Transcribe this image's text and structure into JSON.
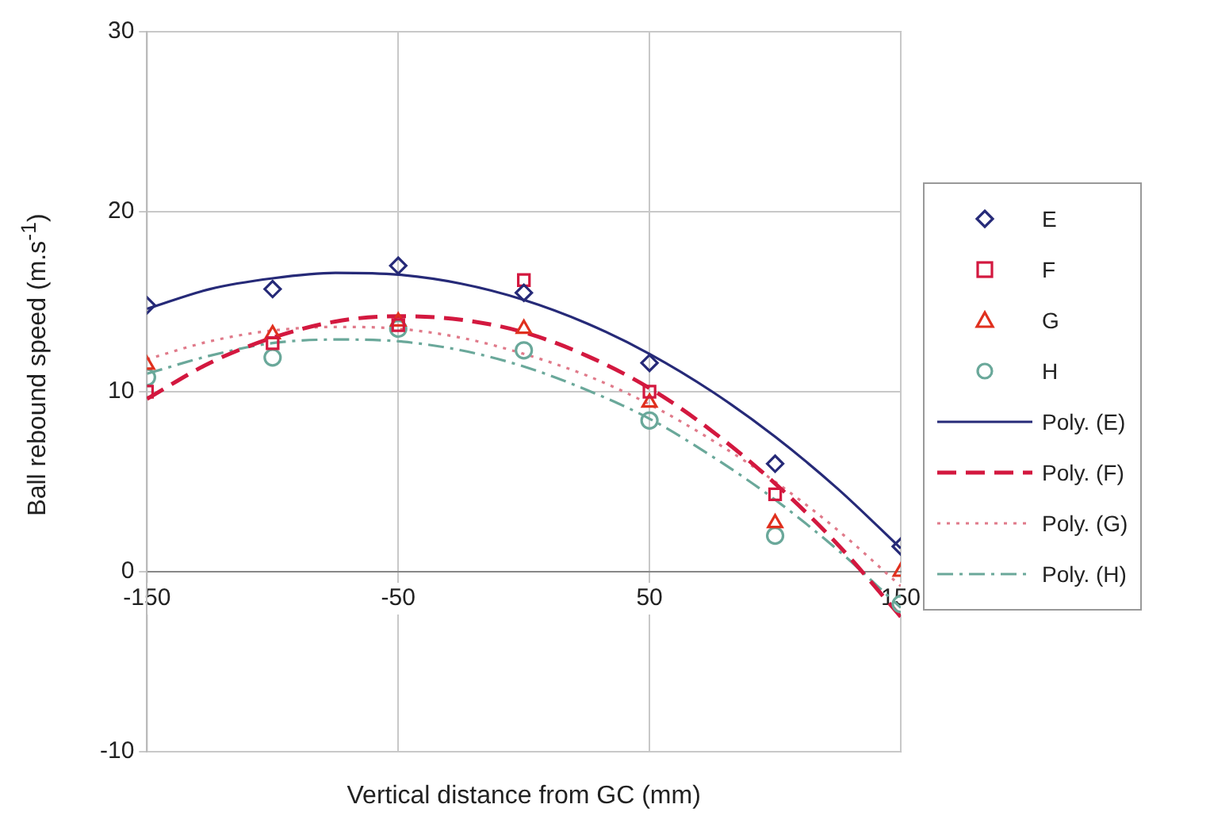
{
  "chart_data": {
    "type": "scatter",
    "xlabel": "Vertical distance from GC (mm)",
    "ylabel": "Ball rebound speed (m.s$^{-1}$)",
    "xlim": [
      -150,
      150
    ],
    "xticks": [
      -150,
      -50,
      50,
      150
    ],
    "ylim": [
      -10,
      30
    ],
    "yticks": [
      -10,
      0,
      10,
      20,
      30
    ],
    "grid": true,
    "legend": "right",
    "series": [
      {
        "name": "E",
        "marker": "diamond",
        "color": "#262a78",
        "x": [
          -150,
          -100,
          -50,
          0,
          50,
          100,
          150
        ],
        "values": [
          14.8,
          15.7,
          17.0,
          15.5,
          11.6,
          6.0,
          1.4
        ]
      },
      {
        "name": "F",
        "marker": "square",
        "color": "#d3183f",
        "x": [
          -150,
          -100,
          -50,
          0,
          50,
          100
        ],
        "values": [
          10.0,
          12.7,
          13.7,
          16.2,
          10.0,
          4.3
        ]
      },
      {
        "name": "G",
        "marker": "triangle",
        "color": "#e0301e",
        "x": [
          -150,
          -100,
          -50,
          0,
          50,
          100,
          150
        ],
        "values": [
          11.5,
          13.2,
          13.9,
          13.5,
          9.4,
          2.7,
          0.0
        ]
      },
      {
        "name": "H",
        "marker": "circle",
        "color": "#6aa89a",
        "x": [
          -150,
          -100,
          -50,
          0,
          50,
          100,
          150
        ],
        "values": [
          10.8,
          11.9,
          13.5,
          12.3,
          8.4,
          2.0,
          -1.8
        ]
      },
      {
        "name": "Poly. (E)",
        "type": "line",
        "line_style": "solid",
        "color": "#262a78",
        "x": [
          -150,
          -125,
          -100,
          -75,
          -50,
          -25,
          0,
          25,
          50,
          75,
          100,
          125,
          150
        ],
        "values": [
          14.6,
          15.7,
          16.3,
          16.6,
          16.5,
          16.0,
          15.1,
          13.8,
          12.1,
          10.0,
          7.5,
          4.6,
          1.3
        ]
      },
      {
        "name": "Poly. (F)",
        "type": "line",
        "line_style": "dashed",
        "color": "#d3183f",
        "x": [
          -150,
          -125,
          -100,
          -75,
          -50,
          -25,
          0,
          25,
          50,
          75,
          100,
          125,
          150
        ],
        "values": [
          9.6,
          11.6,
          13.0,
          13.9,
          14.2,
          14.0,
          13.3,
          12.0,
          10.2,
          7.8,
          4.9,
          1.5,
          -2.5
        ]
      },
      {
        "name": "Poly. (G)",
        "type": "line",
        "line_style": "dotted",
        "color": "#e07a8a",
        "x": [
          -150,
          -125,
          -100,
          -75,
          -50,
          -25,
          0,
          25,
          50,
          75,
          100,
          125,
          150
        ],
        "values": [
          11.8,
          12.8,
          13.4,
          13.6,
          13.5,
          13.0,
          12.1,
          10.9,
          9.3,
          7.3,
          5.0,
          2.3,
          -0.8
        ]
      },
      {
        "name": "Poly. (H)",
        "type": "line",
        "line_style": "dashdot",
        "color": "#6aa89a",
        "x": [
          -150,
          -125,
          -100,
          -75,
          -50,
          -25,
          0,
          25,
          50,
          75,
          100,
          125,
          150
        ],
        "values": [
          11.0,
          12.0,
          12.7,
          12.9,
          12.8,
          12.3,
          11.4,
          10.1,
          8.5,
          6.4,
          4.0,
          1.2,
          -2.0
        ]
      }
    ]
  }
}
